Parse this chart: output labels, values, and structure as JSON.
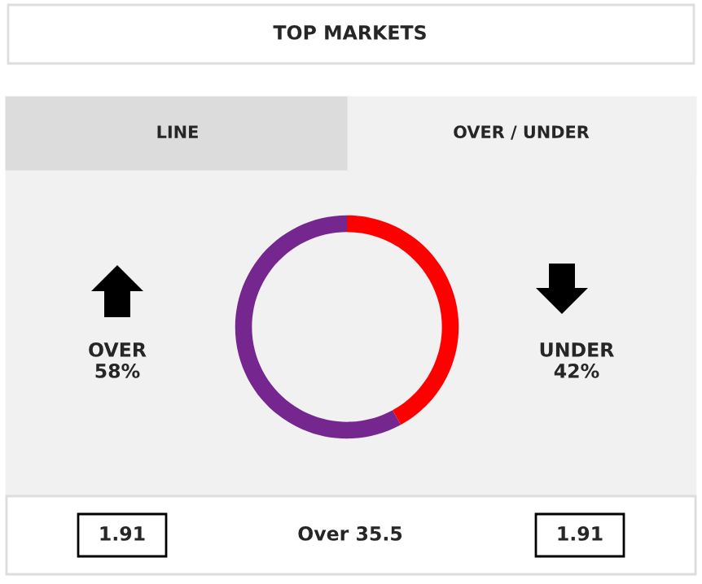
{
  "chart_data": {
    "type": "donut",
    "title": "TOP MARKETS",
    "categories": [
      "OVER",
      "UNDER"
    ],
    "values": [
      58,
      42
    ],
    "value_labels": [
      "58%",
      "42%"
    ],
    "colors": [
      "#76268f",
      "#ff0000"
    ],
    "annotations": [
      "LINE",
      "OVER / UNDER",
      "1.91",
      "Over 35.5",
      "1.91"
    ]
  }
}
